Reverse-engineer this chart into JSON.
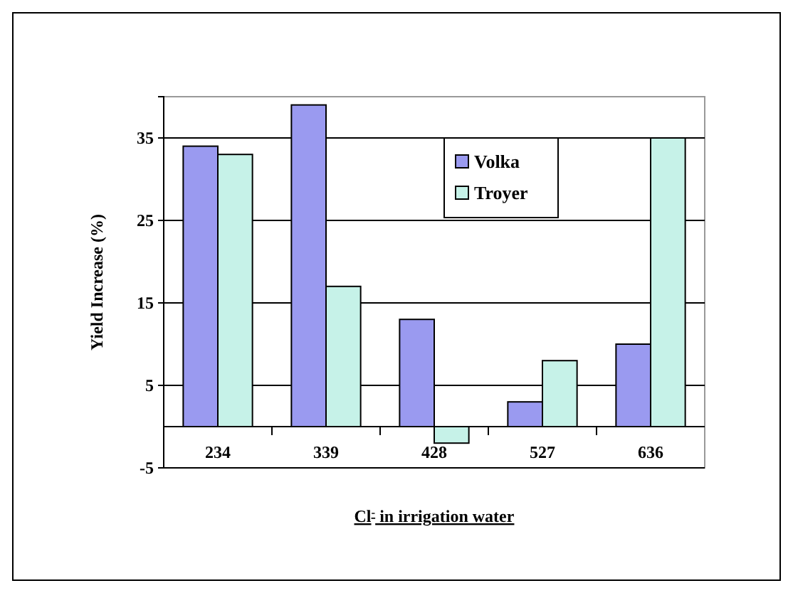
{
  "chart_data": {
    "type": "bar",
    "categories": [
      "234",
      "339",
      "428",
      "527",
      "636"
    ],
    "series": [
      {
        "name": "Volka",
        "color": "#9a9af0",
        "values": [
          34,
          39,
          13,
          3,
          10
        ]
      },
      {
        "name": "Troyer",
        "color": "#c6f2e8",
        "values": [
          33,
          17,
          -2,
          8,
          35
        ]
      }
    ],
    "xlabel": "Cl$^{-}$ in irrigation water",
    "ylabel": "Yield Increase (%)",
    "ylim": [
      -5,
      40
    ],
    "yticks": [
      -5,
      5,
      15,
      25,
      35
    ],
    "grid": "y",
    "legend": "top right"
  }
}
